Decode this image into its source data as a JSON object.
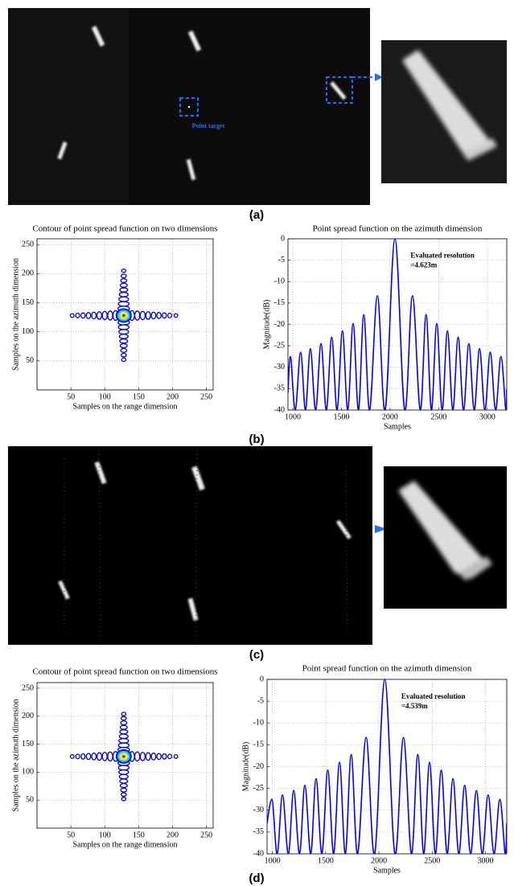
{
  "panels": {
    "labels": [
      "(a)",
      "(b)",
      "(c)",
      "(d)"
    ],
    "annotation": "Point target"
  },
  "chart_data": [
    {
      "type": "contour",
      "title": "Contour of point spread function on two dimensions",
      "xlabel": "Samples on the range dimension",
      "ylabel": "Samples on the azimuth dimension",
      "xlim": [
        0,
        260
      ],
      "ylim": [
        0,
        260
      ],
      "xticks": [
        50,
        100,
        150,
        200,
        250
      ],
      "yticks": [
        50,
        100,
        150,
        200,
        250
      ],
      "grid": true,
      "color": "#0000cc",
      "center": [
        128,
        128
      ],
      "center_colors": [
        "#0000ff",
        "#00bfff",
        "#7fff7f",
        "#ffff00",
        "#ff0000"
      ],
      "series": [
        {
          "x": [
            52,
            60,
            68,
            76,
            84,
            92,
            100,
            108,
            116,
            140,
            148,
            156,
            164,
            172,
            180,
            188,
            196,
            205
          ],
          "y": [
            128,
            128,
            128,
            128,
            128,
            128,
            128,
            128,
            128,
            128,
            128,
            128,
            128,
            128,
            128,
            128,
            128,
            128
          ]
        },
        {
          "x": [
            128,
            128,
            128,
            128,
            128,
            128,
            128,
            128,
            128,
            128,
            128,
            128,
            128,
            128,
            128,
            128,
            128,
            128
          ],
          "y": [
            52,
            60,
            68,
            76,
            84,
            92,
            100,
            108,
            116,
            140,
            148,
            156,
            164,
            172,
            180,
            188,
            196,
            205
          ]
        }
      ]
    },
    {
      "type": "line",
      "title": "Point spread function on the azimuth dimension",
      "xlabel": "Samples",
      "ylabel": "Magnitude(dB)",
      "xlim": [
        950,
        3200
      ],
      "ylim": [
        -40,
        0
      ],
      "xticks": [
        1000,
        1500,
        2000,
        2500,
        3000
      ],
      "yticks": [
        0,
        -5,
        -10,
        -15,
        -20,
        -25,
        -30,
        -35,
        -40
      ],
      "grid": true,
      "color": "#0000ff",
      "annotation": [
        "Evaluated resolution",
        "=4.623m"
      ],
      "x": [
        950,
        975,
        1025,
        1080,
        1130,
        1180,
        1235,
        1290,
        1345,
        1400,
        1455,
        1510,
        1565,
        1620,
        1675,
        1730,
        1790,
        1870,
        1950,
        2050,
        2150,
        2230,
        2310,
        2370,
        2425,
        2480,
        2535,
        2590,
        2645,
        2700,
        2755,
        2810,
        2865,
        2920,
        2975,
        3030,
        3085,
        3140,
        3190,
        3200
      ],
      "values": [
        -36,
        -27.5,
        -40,
        -26.5,
        -40,
        -25.7,
        -40,
        -24.5,
        -40,
        -23,
        -40,
        -21.5,
        -40,
        -19.8,
        -40,
        -17.7,
        -40,
        -13.3,
        -40,
        0,
        -40,
        -13.3,
        -40,
        -17.7,
        -40,
        -19.8,
        -40,
        -21.5,
        -40,
        -23,
        -40,
        -24.5,
        -40,
        -25.7,
        -40,
        -26.5,
        -40,
        -27.5,
        -40,
        -35
      ]
    },
    {
      "type": "contour",
      "title": "Contour of point spread function on two dimensions",
      "xlabel": "Samples on the range dimension",
      "ylabel": "Samples on the azimuth dimension",
      "xlim": [
        0,
        260
      ],
      "ylim": [
        0,
        260
      ],
      "xticks": [
        50,
        100,
        150,
        200,
        250
      ],
      "yticks": [
        50,
        100,
        150,
        200,
        250
      ],
      "grid": true,
      "color": "#0000cc",
      "center": [
        128,
        128
      ],
      "center_colors": [
        "#0000ff",
        "#00bfff",
        "#7fff7f",
        "#ffff00",
        "#ff0000"
      ],
      "series": [
        {
          "x": [
            52,
            60,
            68,
            76,
            84,
            92,
            100,
            108,
            116,
            140,
            148,
            156,
            164,
            172,
            180,
            188,
            196,
            205
          ],
          "y": [
            128,
            128,
            128,
            128,
            128,
            128,
            128,
            128,
            128,
            128,
            128,
            128,
            128,
            128,
            128,
            128,
            128,
            128
          ]
        },
        {
          "x": [
            128,
            128,
            128,
            128,
            128,
            128,
            128,
            128,
            128,
            128,
            128,
            128,
            128,
            128,
            128,
            128,
            128,
            128
          ],
          "y": [
            52,
            60,
            68,
            76,
            84,
            92,
            100,
            108,
            116,
            140,
            148,
            156,
            164,
            172,
            180,
            188,
            196,
            204
          ]
        }
      ]
    },
    {
      "type": "line",
      "title": "Point spread function on the azimuth dimension",
      "xlabel": "Samples",
      "ylabel": "Magnitude(dB)",
      "xlim": [
        950,
        3200
      ],
      "ylim": [
        -40,
        0
      ],
      "xticks": [
        1000,
        1500,
        2000,
        2500,
        3000
      ],
      "yticks": [
        0,
        -5,
        -10,
        -15,
        -20,
        -25,
        -30,
        -35,
        -40
      ],
      "grid": true,
      "color": "#0000ff",
      "annotation": [
        "Evaluated resolution",
        "=4.539m"
      ],
      "x": [
        950,
        995,
        1045,
        1095,
        1150,
        1200,
        1255,
        1305,
        1360,
        1410,
        1465,
        1520,
        1575,
        1630,
        1685,
        1740,
        1800,
        1880,
        1960,
        2055,
        2150,
        2230,
        2305,
        2365,
        2420,
        2475,
        2530,
        2585,
        2640,
        2695,
        2750,
        2805,
        2860,
        2915,
        2970,
        3025,
        3080,
        3135,
        3185,
        3200
      ],
      "values": [
        -33,
        -27.5,
        -40,
        -26.5,
        -40,
        -25.5,
        -40,
        -24.3,
        -40,
        -22.8,
        -40,
        -20.8,
        -40,
        -19,
        -40,
        -17.2,
        -40,
        -13.3,
        -40,
        0,
        -40,
        -13.3,
        -40,
        -17.2,
        -40,
        -19,
        -40,
        -20.8,
        -40,
        -22.8,
        -40,
        -24.3,
        -40,
        -25.5,
        -40,
        -26.5,
        -40,
        -27.5,
        -40,
        -33
      ]
    }
  ]
}
